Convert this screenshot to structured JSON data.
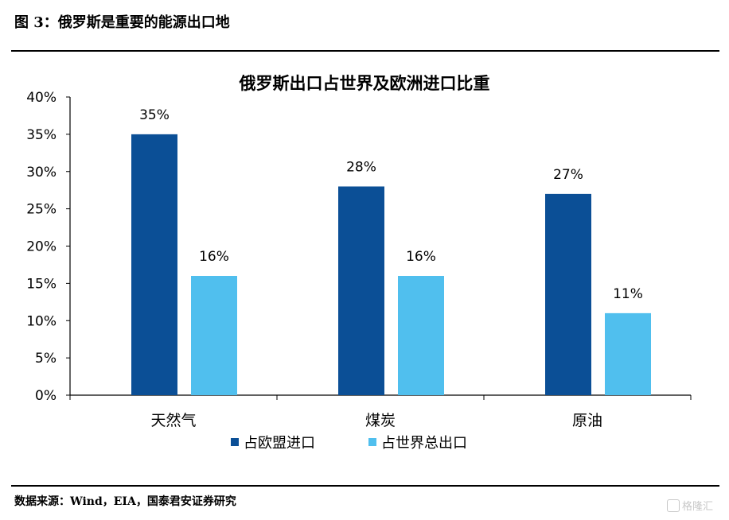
{
  "figure_title": "图 3：俄罗斯是重要的能源出口地",
  "source_note": "数据来源：Wind，EIA，国泰君安证券研究",
  "watermark": {
    "text": "格隆汇",
    "icon": "gelonghui-logo-icon"
  },
  "colors": {
    "series1": "#0b4f96",
    "series2": "#50bfee",
    "axis": "#000000"
  },
  "chart_data": {
    "type": "bar",
    "title": "俄罗斯出口占世界及欧洲进口比重",
    "categories": [
      "天然气",
      "煤炭",
      "原油"
    ],
    "series": [
      {
        "name": "占欧盟进口",
        "values": [
          35,
          28,
          27
        ],
        "labels": [
          "35%",
          "28%",
          "27%"
        ]
      },
      {
        "name": "占世界总出口",
        "values": [
          16,
          16,
          11
        ],
        "labels": [
          "16%",
          "16%",
          "11%"
        ]
      }
    ],
    "ylim": [
      0,
      40
    ],
    "yticks": [
      "0%",
      "5%",
      "10%",
      "15%",
      "20%",
      "25%",
      "30%",
      "35%",
      "40%"
    ],
    "xlabel": "",
    "ylabel": "",
    "grid": false,
    "legend_position": "bottom"
  }
}
